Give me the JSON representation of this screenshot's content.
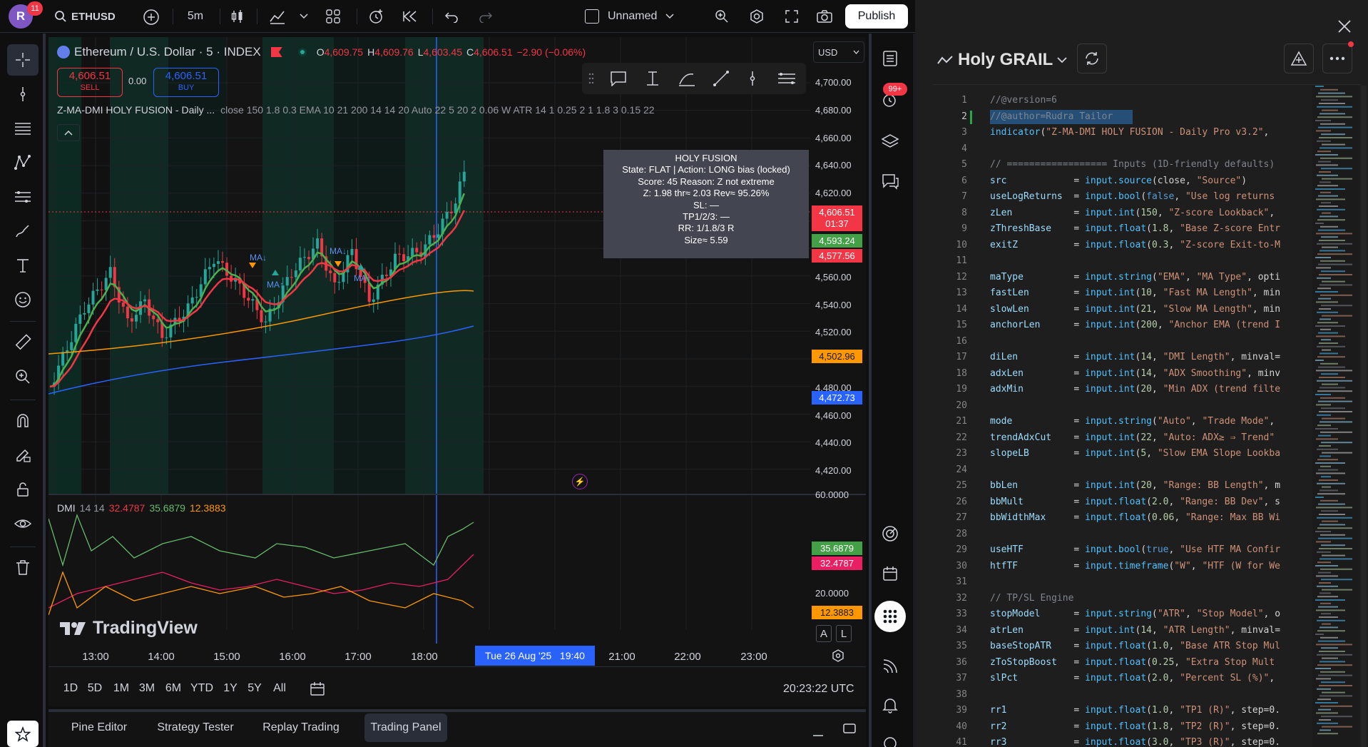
{
  "topbar": {
    "avatar_letter": "R",
    "notif_count": "11",
    "symbol": "ETHUSD",
    "interval": "5m",
    "layout_name": "Unnamed",
    "publish_label": "Publish"
  },
  "legend": {
    "title": "Ethereum / U.S. Dollar · 5 · INDEX",
    "o_label": "O",
    "o_value": "4,609.75",
    "h_label": "H",
    "h_value": "4,609.76",
    "l_label": "L",
    "l_value": "4,603.45",
    "c_label": "C",
    "c_value": "4,606.51",
    "change": "−2.90 (−0.06%)",
    "sell_price": "4,606.51",
    "sell_label": "SELL",
    "spread": "0.00",
    "buy_price": "4,606.51",
    "buy_label": "BUY",
    "indicator_name": "Z-MA-DMI HOLY FUSION - Daily ...",
    "indicator_params": "close 150 1.8 0.3 EMA 10 21 200 14 14 20 Auto 22 5 20 2 0.06 W ATR 14 1 0.25 2 1 1.8 3 0.15 22"
  },
  "currency": "USD",
  "price_axis": [
    "4,700.00",
    "4,680.00",
    "4,660.00",
    "4,640.00",
    "4,620.00",
    "4,560.00",
    "4,540.00",
    "4,520.00",
    "4,480.00",
    "4,460.00",
    "4,440.00",
    "4,420.00"
  ],
  "price_tags": {
    "last": "4,606.51",
    "countdown": "01:37",
    "green": "4,593.24",
    "red": "4,577.56",
    "orange": "4,502.96",
    "blue": "4,472.73"
  },
  "tooltip": {
    "title": "HOLY FUSION",
    "lines": [
      "State: FLAT | Action: LONG bias (locked)",
      "Score: 45  Reason: Z not extreme",
      "Z: 1.98  thr≈ 2.03  Rev≈ 95.26%",
      "SL: —",
      "TP1/2/3: —",
      "RR: 1/1.8/3 R",
      "Size≈ 5.59"
    ]
  },
  "ma_labels": [
    "MA↓",
    "MA↑",
    "MA↓",
    "MA↑"
  ],
  "dmi": {
    "name": "DMI",
    "params": "14 14",
    "v1": "32.4787",
    "v2": "35.6879",
    "v3": "12.3883",
    "axis_top": "60.0000",
    "axis_mid": "20.0000",
    "tag_green": "35.6879",
    "tag_pink": "32.4787",
    "tag_orange": "12.3883"
  },
  "watermark": "TradingView",
  "scale_btns": [
    "A",
    "L"
  ],
  "time_axis": [
    "13:00",
    "14:00",
    "15:00",
    "16:00",
    "17:00",
    "18:00",
    "21:00",
    "22:00",
    "23:00"
  ],
  "crosshair_time": "Tue 26 Aug '25   19:40",
  "ranges": [
    "1D",
    "5D",
    "1M",
    "3M",
    "6M",
    "YTD",
    "1Y",
    "5Y",
    "All"
  ],
  "clock": "20:23:22 UTC",
  "bottom_tabs": [
    "Pine Editor",
    "Strategy Tester",
    "Replay Trading",
    "Trading Panel"
  ],
  "right_badge": "99+",
  "editor": {
    "script_name": "Holy GRAIL",
    "lines": [
      [
        "1",
        "//@version=6"
      ],
      [
        "2",
        "//@author=Rudra Tailor"
      ],
      [
        "3",
        "indicator(\"Z-MA-DMI HOLY FUSION - Daily Pro v3.2\","
      ],
      [
        "4",
        ""
      ],
      [
        "5",
        "// ================== Inputs (1D-friendly defaults)"
      ],
      [
        "6",
        "src            = input.source(close, \"Source\")"
      ],
      [
        "7",
        "useLogReturns  = input.bool(false, \"Use log returns"
      ],
      [
        "8",
        "zLen           = input.int(150, \"Z-score Lookback\","
      ],
      [
        "9",
        "zThreshBase    = input.float(1.8, \"Base Z-score Entr"
      ],
      [
        "10",
        "exitZ          = input.float(0.3, \"Z-score Exit-to-M"
      ],
      [
        "11",
        ""
      ],
      [
        "12",
        "maType         = input.string(\"EMA\", \"MA Type\", opti"
      ],
      [
        "13",
        "fastLen        = input.int(10, \"Fast MA Length\", min"
      ],
      [
        "14",
        "slowLen        = input.int(21, \"Slow MA Length\", min"
      ],
      [
        "15",
        "anchorLen      = input.int(200, \"Anchor EMA (trend I"
      ],
      [
        "16",
        ""
      ],
      [
        "17",
        "diLen          = input.int(14, \"DMI Length\", minval="
      ],
      [
        "18",
        "adxLen         = input.int(14, \"ADX Smoothing\", minv"
      ],
      [
        "19",
        "adxMin         = input.int(20, \"Min ADX (trend filte"
      ],
      [
        "20",
        ""
      ],
      [
        "21",
        "mode           = input.string(\"Auto\", \"Trade Mode\","
      ],
      [
        "22",
        "trendAdxCut    = input.int(22, \"Auto: ADX≥ ⇒ Trend\""
      ],
      [
        "23",
        "slopeLB        = input.int(5, \"Slow EMA Slope Lookba"
      ],
      [
        "24",
        ""
      ],
      [
        "25",
        "bbLen          = input.int(20, \"Range: BB Length\", m"
      ],
      [
        "26",
        "bbMult         = input.float(2.0, \"Range: BB Dev\", s"
      ],
      [
        "27",
        "bbWidthMax     = input.float(0.06, \"Range: Max BB Wi"
      ],
      [
        "28",
        ""
      ],
      [
        "29",
        "useHTF         = input.bool(true, \"Use HTF MA Confir"
      ],
      [
        "30",
        "htfTF          = input.timeframe(\"W\", \"HTF (W for We"
      ],
      [
        "31",
        ""
      ],
      [
        "32",
        "// TP/SL Engine"
      ],
      [
        "33",
        "stopModel      = input.string(\"ATR\", \"Stop Model\", o"
      ],
      [
        "34",
        "atrLen         = input.int(14, \"ATR Length\", minval="
      ],
      [
        "35",
        "baseStopATR    = input.float(1.0, \"Base ATR Stop Mul"
      ],
      [
        "36",
        "zToStopBoost   = input.float(0.25, \"Extra Stop Mult"
      ],
      [
        "37",
        "slPct          = input.float(2.0, \"Percent SL (%)\","
      ],
      [
        "38",
        ""
      ],
      [
        "39",
        "rr1            = input.float(1.0, \"TP1 (R)\", step=0."
      ],
      [
        "40",
        "rr2            = input.float(1.8, \"TP2 (R)\", step=0."
      ],
      [
        "41",
        "rr3            = input.float(3.0, \"TP3 (R)\", step=0."
      ]
    ]
  },
  "colors": {
    "bull": "#26a69a",
    "bear": "#ef5350",
    "fast_ma": "#4caf50",
    "slow_ma": "#f23645",
    "anchor": "#ff9800",
    "blue_ma": "#2962ff",
    "accent": "#2962ff"
  }
}
